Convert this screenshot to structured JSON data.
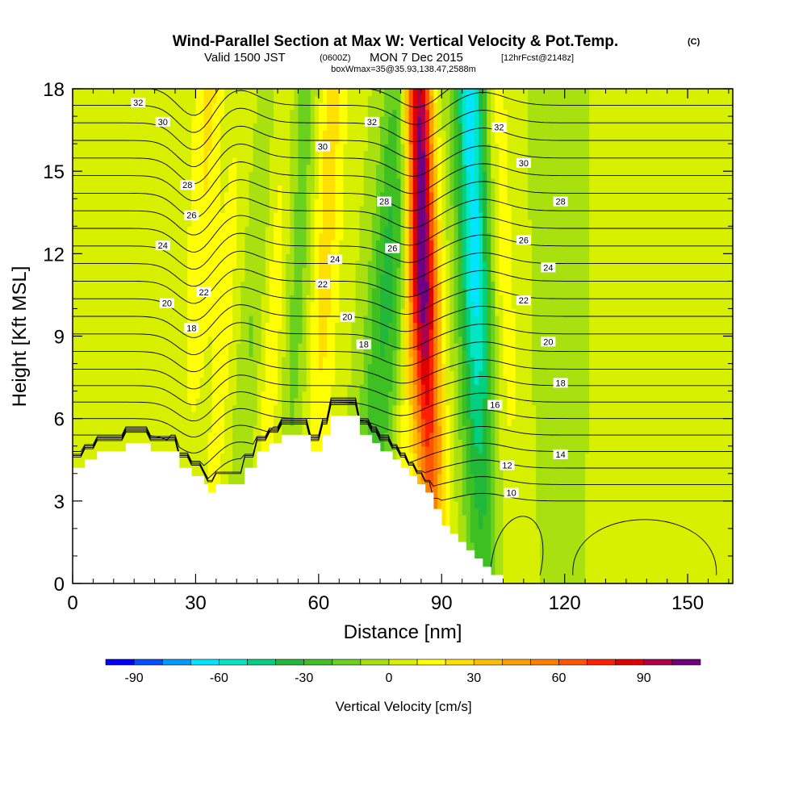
{
  "chart_data": {
    "type": "heatmap",
    "title": "Wind-Parallel Section at Max W: Vertical Velocity & Pot.Temp.",
    "title_mark": "(C)",
    "subtitle": {
      "valid_prefix": "Valid 1500 JST",
      "utc": "(0600Z)",
      "date": "MON 7 Dec 2015",
      "forecast": "[12hrFcst@2148z]"
    },
    "subtitle2": "boxWmax=35@35.93,138.47,2588m",
    "xlabel": "Distance [nm]",
    "ylabel": "Height [Kft MSL]",
    "xlim": [
      0,
      161
    ],
    "ylim": [
      0,
      18
    ],
    "xticks": [
      0,
      30,
      60,
      90,
      120,
      150
    ],
    "yticks": [
      0,
      3,
      6,
      9,
      12,
      15,
      18
    ],
    "grid": false,
    "colorbar": {
      "label": "Vertical Velocity [cm/s]",
      "tick_labels": [
        "-90",
        "-60",
        "-30",
        "0",
        "30",
        "60",
        "90"
      ],
      "tick_values": [
        -90,
        -60,
        -30,
        0,
        30,
        60,
        90
      ],
      "levels": [
        -100,
        -90,
        -80,
        -70,
        -60,
        -50,
        -40,
        -30,
        -20,
        -10,
        0,
        10,
        20,
        30,
        40,
        50,
        60,
        70,
        80,
        90,
        100,
        110
      ],
      "colors": [
        "#0000ff",
        "#0050ff",
        "#0099ff",
        "#00e5ff",
        "#00e6c4",
        "#00d080",
        "#22b83c",
        "#3ec022",
        "#6ad11e",
        "#a8e010",
        "#d7f000",
        "#ffff00",
        "#ffe000",
        "#ffbf00",
        "#ff9f00",
        "#ff8000",
        "#ff5500",
        "#ff2000",
        "#e00000",
        "#b0004a",
        "#700080"
      ]
    },
    "plumes": [
      {
        "x": 30,
        "y0": 0,
        "x_top": 7,
        "w": 3.5,
        "amp": -35
      },
      {
        "x": 31,
        "y0": 0,
        "x_top": 5,
        "w": 5,
        "amp": 45
      },
      {
        "x": 40,
        "y0": 0,
        "x_top": 10,
        "w": 4,
        "amp": -25
      },
      {
        "x": 45,
        "y0": 0,
        "x_top": 6,
        "w": 4,
        "amp": 30
      },
      {
        "x": 52,
        "y0": 0,
        "x_top": 5,
        "w": 4,
        "amp": -20
      },
      {
        "x": 58,
        "y0": 0,
        "x_top": 5,
        "w": 4,
        "amp": 25
      },
      {
        "x": 70,
        "y0": 0,
        "x_top": 10,
        "w": 4,
        "amp": -30
      },
      {
        "x": 78,
        "y0": 0,
        "x_top": 8,
        "w": 3,
        "amp": 25
      },
      {
        "x": 74,
        "y0": 0,
        "x_top": 12,
        "w": 4,
        "amp": -22
      },
      {
        "x": 88,
        "y0": 0,
        "x_top": -4,
        "w": 3.5,
        "amp": 105
      },
      {
        "x": 100,
        "y0": 0,
        "x_top": -3,
        "w": 4,
        "amp": -65
      },
      {
        "x": 108,
        "y0": 0,
        "x_top": -5,
        "w": 3.5,
        "amp": 15
      },
      {
        "x": 120,
        "y0": 0,
        "x_top": 0,
        "w": 6,
        "amp": -10
      },
      {
        "x": 140,
        "y0": 0,
        "x_top": 0,
        "w": 14,
        "amp": 8
      }
    ],
    "terrain": [
      [
        0,
        4.2
      ],
      [
        3,
        4.2
      ],
      [
        3,
        4.5
      ],
      [
        6,
        4.5
      ],
      [
        6,
        4.8
      ],
      [
        13,
        4.8
      ],
      [
        13,
        5.1
      ],
      [
        19,
        5.1
      ],
      [
        19,
        4.8
      ],
      [
        26,
        4.8
      ],
      [
        26,
        4.2
      ],
      [
        29,
        4.2
      ],
      [
        29,
        3.9
      ],
      [
        32,
        3.9
      ],
      [
        32,
        3.6
      ],
      [
        33,
        3.6
      ],
      [
        33,
        3.3
      ],
      [
        35,
        3.3
      ],
      [
        35,
        3.6
      ],
      [
        42,
        3.6
      ],
      [
        42,
        4.2
      ],
      [
        45,
        4.2
      ],
      [
        45,
        4.8
      ],
      [
        48,
        4.8
      ],
      [
        48,
        5.1
      ],
      [
        51,
        5.1
      ],
      [
        51,
        5.4
      ],
      [
        58,
        5.4
      ],
      [
        58,
        4.8
      ],
      [
        61,
        4.8
      ],
      [
        61,
        5.4
      ],
      [
        63,
        5.4
      ],
      [
        63,
        6.1
      ],
      [
        70,
        6.1
      ],
      [
        70,
        5.4
      ],
      [
        73,
        5.4
      ],
      [
        73,
        5.1
      ],
      [
        75,
        5.1
      ],
      [
        75,
        4.8
      ],
      [
        78,
        4.8
      ],
      [
        78,
        4.5
      ],
      [
        80,
        4.5
      ],
      [
        80,
        4.2
      ],
      [
        82,
        4.2
      ],
      [
        82,
        3.9
      ],
      [
        84,
        3.9
      ],
      [
        84,
        3.6
      ],
      [
        86,
        3.6
      ],
      [
        86,
        3.3
      ],
      [
        88,
        3.3
      ],
      [
        88,
        2.7
      ],
      [
        90,
        2.7
      ],
      [
        90,
        2.1
      ],
      [
        92,
        2.1
      ],
      [
        92,
        1.8
      ],
      [
        94,
        1.8
      ],
      [
        94,
        1.5
      ],
      [
        96,
        1.5
      ],
      [
        96,
        1.2
      ],
      [
        98,
        1.2
      ],
      [
        98,
        0.9
      ],
      [
        100,
        0.9
      ],
      [
        100,
        0.6
      ],
      [
        102,
        0.6
      ],
      [
        102,
        0.3
      ],
      [
        105,
        0.3
      ],
      [
        105,
        0
      ]
    ],
    "theta_levels": [
      10,
      11,
      12,
      13,
      14,
      15,
      16,
      17,
      18,
      19,
      20,
      21,
      22,
      23,
      24,
      25,
      26,
      27,
      28,
      29,
      30,
      31,
      32,
      33,
      34
    ],
    "theta_labels": [
      {
        "text": "32",
        "x": 16,
        "y": 17.5
      },
      {
        "text": "30",
        "x": 22,
        "y": 16.8
      },
      {
        "text": "28",
        "x": 28,
        "y": 14.5
      },
      {
        "text": "26",
        "x": 29,
        "y": 13.4
      },
      {
        "text": "24",
        "x": 22,
        "y": 12.3
      },
      {
        "text": "22",
        "x": 32,
        "y": 10.6
      },
      {
        "text": "20",
        "x": 23,
        "y": 10.2
      },
      {
        "text": "18",
        "x": 29,
        "y": 9.3
      },
      {
        "text": "32",
        "x": 73,
        "y": 16.8
      },
      {
        "text": "30",
        "x": 61,
        "y": 15.9
      },
      {
        "text": "28",
        "x": 76,
        "y": 13.9
      },
      {
        "text": "26",
        "x": 78,
        "y": 12.2
      },
      {
        "text": "24",
        "x": 64,
        "y": 11.8
      },
      {
        "text": "22",
        "x": 61,
        "y": 10.9
      },
      {
        "text": "20",
        "x": 67,
        "y": 9.7
      },
      {
        "text": "18",
        "x": 71,
        "y": 8.7
      },
      {
        "text": "32",
        "x": 104,
        "y": 16.6
      },
      {
        "text": "30",
        "x": 110,
        "y": 15.3
      },
      {
        "text": "28",
        "x": 119,
        "y": 13.9
      },
      {
        "text": "26",
        "x": 110,
        "y": 12.5
      },
      {
        "text": "24",
        "x": 116,
        "y": 11.5
      },
      {
        "text": "22",
        "x": 110,
        "y": 10.3
      },
      {
        "text": "20",
        "x": 116,
        "y": 8.8
      },
      {
        "text": "18",
        "x": 119,
        "y": 7.3
      },
      {
        "text": "16",
        "x": 103,
        "y": 6.5
      },
      {
        "text": "14",
        "x": 119,
        "y": 4.7
      },
      {
        "text": "12",
        "x": 106,
        "y": 4.3
      },
      {
        "text": "10",
        "x": 107,
        "y": 3.3
      }
    ]
  }
}
